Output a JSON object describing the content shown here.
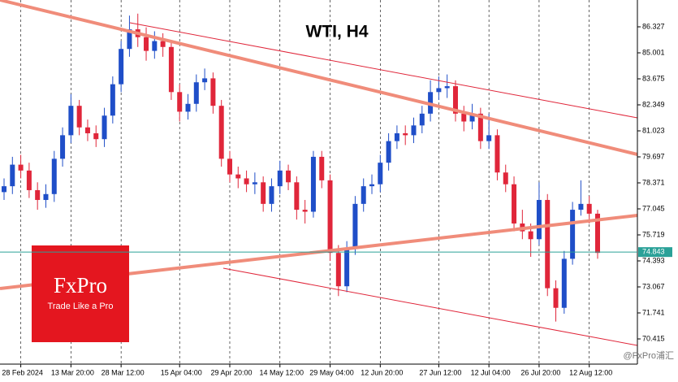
{
  "chart_data": {
    "type": "candlestick",
    "title": "WTI, H4",
    "categories": [
      null,
      null,
      "28 Feb 2024",
      null,
      null,
      null,
      null,
      null,
      "13 Mar 20:00",
      null,
      null,
      null,
      null,
      null,
      "28 Mar 12:00",
      null,
      null,
      null,
      null,
      null,
      null,
      "15 Apr 04:00",
      null,
      null,
      null,
      null,
      null,
      "29 Apr 20:00",
      null,
      null,
      null,
      null,
      null,
      "14 May 12:00",
      null,
      null,
      null,
      null,
      null,
      "29 May 04:00",
      null,
      null,
      null,
      null,
      null,
      "12 Jun 20:00",
      null,
      null,
      null,
      null,
      null,
      null,
      "27 Jun 12:00",
      null,
      null,
      null,
      null,
      null,
      "12 Jul 04:00",
      null,
      null,
      null,
      null,
      null,
      "26 Jul 20:00",
      null,
      null,
      null,
      null,
      null,
      "12 Aug 12:00",
      null
    ],
    "series": [
      {
        "open": [
          77.9,
          78.2,
          79.3,
          79.0,
          78.0,
          77.5,
          77.8,
          79.6,
          80.8,
          82.3,
          81.2,
          80.9,
          80.6,
          81.8,
          83.4,
          85.2,
          86.2,
          85.8,
          85.1,
          85.6,
          85.3,
          83.0,
          82.0,
          82.4,
          83.5,
          83.7,
          82.3,
          79.6,
          78.8,
          78.6,
          78.3,
          78.4,
          77.3,
          78.2,
          79.0,
          78.4,
          77.0,
          76.9,
          79.7,
          78.5,
          74.8,
          73.1,
          75.0,
          77.3,
          78.2,
          78.3,
          79.4,
          80.5,
          80.9,
          80.8,
          81.3,
          81.9,
          83.0,
          83.2,
          83.3,
          81.9,
          81.5,
          81.9,
          80.5,
          80.8,
          78.9,
          78.3,
          76.3,
          75.9,
          75.5,
          77.5,
          73.0,
          72.0,
          74.5,
          77.0,
          77.3,
          76.8
        ],
        "high": [
          78.6,
          79.7,
          79.8,
          79.4,
          78.4,
          78.3,
          80.0,
          81.2,
          82.9,
          82.6,
          81.6,
          81.3,
          82.2,
          83.8,
          85.6,
          86.9,
          87.0,
          86.3,
          86.1,
          86.0,
          85.5,
          83.4,
          82.9,
          83.9,
          84.2,
          84.0,
          82.6,
          80.0,
          79.2,
          79.0,
          78.9,
          78.7,
          78.6,
          79.5,
          79.3,
          78.7,
          77.5,
          80.0,
          80.0,
          78.8,
          75.2,
          75.4,
          77.7,
          78.6,
          78.8,
          79.8,
          80.9,
          81.3,
          81.3,
          81.7,
          82.3,
          83.6,
          83.8,
          83.9,
          83.6,
          82.3,
          82.4,
          82.2,
          81.9,
          81.1,
          79.3,
          78.7,
          77.0,
          76.3,
          78.4,
          77.8,
          73.4,
          74.9,
          77.4,
          78.5,
          77.7,
          77.0
        ],
        "low": [
          77.5,
          77.8,
          78.6,
          77.6,
          77.0,
          77.1,
          77.4,
          79.2,
          80.4,
          80.8,
          80.5,
          80.2,
          80.2,
          81.4,
          83.0,
          84.8,
          85.3,
          84.6,
          84.7,
          84.8,
          82.6,
          81.5,
          81.6,
          82.0,
          83.1,
          81.9,
          79.2,
          78.4,
          78.1,
          77.9,
          77.8,
          76.9,
          76.9,
          77.8,
          78.0,
          76.5,
          76.3,
          76.6,
          78.1,
          74.4,
          72.6,
          72.8,
          74.7,
          76.9,
          77.8,
          77.9,
          79.0,
          80.1,
          80.3,
          80.4,
          80.9,
          81.5,
          82.6,
          82.7,
          81.5,
          81.0,
          81.1,
          80.1,
          80.1,
          78.5,
          77.9,
          75.9,
          75.5,
          74.6,
          75.2,
          72.6,
          71.3,
          71.7,
          74.2,
          76.7,
          76.3,
          74.5
        ],
        "close": [
          78.2,
          79.3,
          79.0,
          78.0,
          77.5,
          77.8,
          79.6,
          80.8,
          82.3,
          81.2,
          80.9,
          80.6,
          81.8,
          83.4,
          85.2,
          86.2,
          85.8,
          85.1,
          85.6,
          85.3,
          83.0,
          82.0,
          82.4,
          83.5,
          83.7,
          82.3,
          79.6,
          78.8,
          78.6,
          78.3,
          78.4,
          77.3,
          78.2,
          79.0,
          78.4,
          77.0,
          76.9,
          79.7,
          78.5,
          74.8,
          73.1,
          75.0,
          77.3,
          78.2,
          78.3,
          79.4,
          80.5,
          80.9,
          80.8,
          81.3,
          81.9,
          83.0,
          83.2,
          83.3,
          81.9,
          81.5,
          81.9,
          80.5,
          80.8,
          78.9,
          78.3,
          76.3,
          75.9,
          75.5,
          77.5,
          73.0,
          72.0,
          74.5,
          77.0,
          77.3,
          76.8,
          74.8
        ],
        "up_color": "#1f4ec8",
        "down_color": "#e0263a"
      }
    ],
    "current_price": 74.843,
    "current_price_color": "#2aa198",
    "ylim": [
      69.13,
      87.695
    ],
    "yticks": [
      86.327,
      85.001,
      83.675,
      82.349,
      81.023,
      79.697,
      78.371,
      77.045,
      75.719,
      74.393,
      73.067,
      71.741,
      70.415
    ],
    "grid": true
  },
  "branding": {
    "logo": "FxPro",
    "tagline": "Trade Like a Pro",
    "watermark": "@FxPro浦汇"
  }
}
